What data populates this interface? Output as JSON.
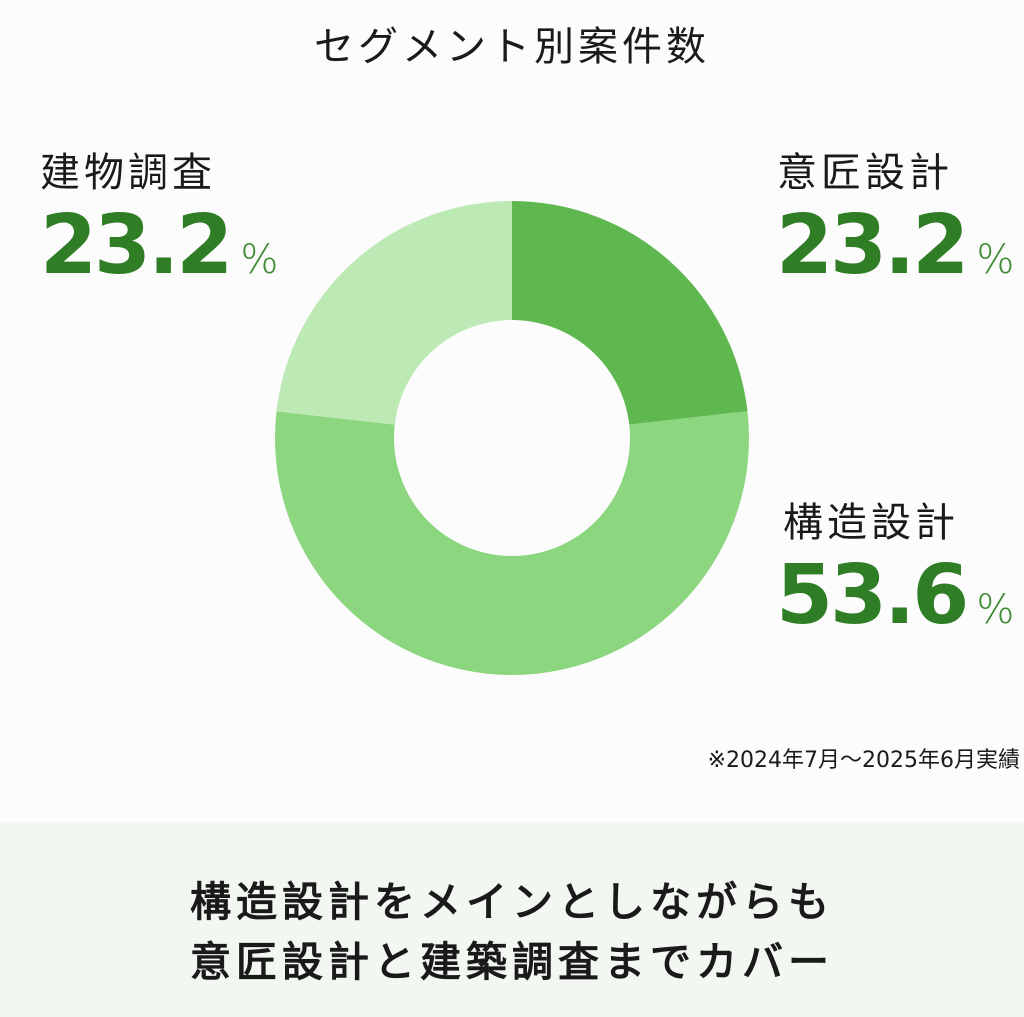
{
  "chart_data": {
    "type": "pie",
    "title": "セグメント別案件数",
    "categories": [
      "意匠設計",
      "構造設計",
      "建物調査"
    ],
    "values": [
      23.2,
      53.6,
      23.2
    ],
    "unit": "%",
    "colors": [
      "#5fb84f",
      "#8dd680",
      "#bde9b5"
    ],
    "donut": true,
    "start_angle": "top",
    "note": "※2024年7月〜2025年6月実績"
  },
  "segments": [
    {
      "name": "意匠設計",
      "value": "23.2",
      "unit": "%"
    },
    {
      "name": "構造設計",
      "value": "53.6",
      "unit": "%"
    },
    {
      "name": "建物調査",
      "value": "23.2",
      "unit": "%"
    }
  ],
  "summary": {
    "line1": "構造設計をメインとしながらも",
    "line2": "意匠設計と建築調査までカバー"
  },
  "colors": {
    "value_text": "#2f7d25",
    "panel_bg": "#f2f7f1",
    "page_bg": "#fcfcfc"
  }
}
